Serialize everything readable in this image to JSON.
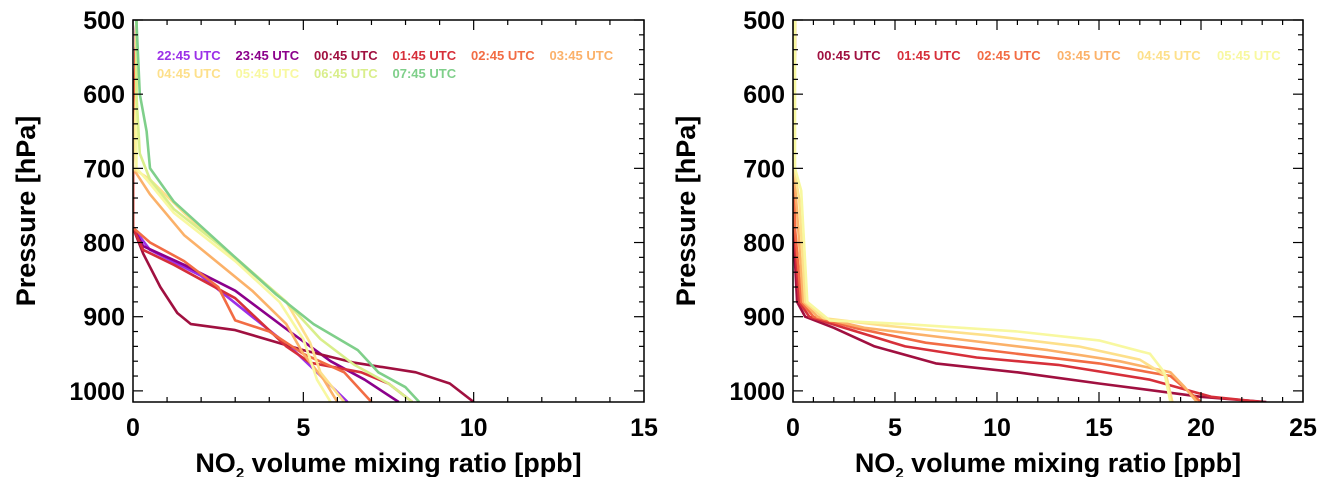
{
  "chart_data": [
    {
      "type": "line",
      "xlabel_main": "NO",
      "xlabel_sub": "2",
      "xlabel_rest": " volume mixing ratio [ppb]",
      "ylabel": "Pressure [hPa]",
      "xlim": [
        0,
        15
      ],
      "ylim": [
        1015,
        500
      ],
      "y_scale": "linear",
      "xticks": [
        0,
        5,
        10,
        15
      ],
      "yticks": [
        500,
        600,
        700,
        800,
        900,
        1000
      ],
      "xtick_labels": [
        "0",
        "5",
        "10",
        "15"
      ],
      "ytick_labels": [
        "500",
        "600",
        "700",
        "800",
        "900",
        "1000"
      ],
      "legend_rows": [
        6,
        4
      ],
      "series": [
        {
          "name": "22:45 UTC",
          "color": "#9b30e8",
          "points": [
            [
              0.1,
              500
            ],
            [
              0.05,
              600
            ],
            [
              0.0,
              700
            ],
            [
              0.0,
              780
            ],
            [
              0.5,
              810
            ],
            [
              2.0,
              845
            ],
            [
              3.5,
              900
            ],
            [
              4.6,
              940
            ],
            [
              5.4,
              975
            ],
            [
              6.3,
              1015
            ]
          ]
        },
        {
          "name": "23:45 UTC",
          "color": "#8b008b",
          "points": [
            [
              0.1,
              500
            ],
            [
              0.05,
              600
            ],
            [
              0.0,
              700
            ],
            [
              0.0,
              780
            ],
            [
              0.3,
              805
            ],
            [
              1.5,
              830
            ],
            [
              3.0,
              865
            ],
            [
              4.6,
              920
            ],
            [
              5.8,
              960
            ],
            [
              6.8,
              985
            ],
            [
              7.8,
              1015
            ]
          ]
        },
        {
          "name": "00:45 UTC",
          "color": "#a01040",
          "points": [
            [
              0.1,
              500
            ],
            [
              0.05,
              600
            ],
            [
              0.0,
              700
            ],
            [
              0.0,
              780
            ],
            [
              0.3,
              815
            ],
            [
              0.8,
              860
            ],
            [
              1.3,
              895
            ],
            [
              1.7,
              910
            ],
            [
              3.0,
              918
            ],
            [
              5.0,
              945
            ],
            [
              6.5,
              962
            ],
            [
              8.3,
              975
            ],
            [
              9.3,
              990
            ],
            [
              10.0,
              1015
            ]
          ]
        },
        {
          "name": "01:45 UTC",
          "color": "#d62f3a",
          "points": [
            [
              0.1,
              500
            ],
            [
              0.05,
              600
            ],
            [
              0.0,
              700
            ],
            [
              0.0,
              780
            ],
            [
              0.3,
              810
            ],
            [
              1.2,
              830
            ],
            [
              3.0,
              875
            ],
            [
              4.5,
              940
            ],
            [
              5.2,
              962
            ],
            [
              6.7,
              975
            ],
            [
              7.5,
              990
            ],
            [
              8.2,
              1015
            ]
          ]
        },
        {
          "name": "02:45 UTC",
          "color": "#f26c44",
          "points": [
            [
              0.1,
              500
            ],
            [
              0.05,
              600
            ],
            [
              0.0,
              700
            ],
            [
              0.0,
              780
            ],
            [
              0.5,
              800
            ],
            [
              1.5,
              825
            ],
            [
              2.5,
              860
            ],
            [
              3.0,
              905
            ],
            [
              4.0,
              920
            ],
            [
              5.0,
              950
            ],
            [
              6.2,
              975
            ],
            [
              7.0,
              1015
            ]
          ]
        },
        {
          "name": "03:45 UTC",
          "color": "#fbb169",
          "points": [
            [
              0.1,
              500
            ],
            [
              0.1,
              600
            ],
            [
              0.0,
              700
            ],
            [
              0.5,
              735
            ],
            [
              1.5,
              790
            ],
            [
              3.5,
              865
            ],
            [
              4.5,
              910
            ],
            [
              5.0,
              950
            ],
            [
              5.6,
              985
            ],
            [
              6.0,
              1015
            ]
          ]
        },
        {
          "name": "04:45 UTC",
          "color": "#fde08b",
          "points": [
            [
              0.1,
              500
            ],
            [
              0.1,
              600
            ],
            [
              0.0,
              700
            ],
            [
              0.5,
              715
            ],
            [
              1.5,
              760
            ],
            [
              3.2,
              830
            ],
            [
              4.5,
              880
            ],
            [
              5.2,
              935
            ],
            [
              5.5,
              975
            ],
            [
              6.2,
              1015
            ]
          ]
        },
        {
          "name": "05:45 UTC",
          "color": "#f8f8a0",
          "points": [
            [
              0.1,
              500
            ],
            [
              0.1,
              600
            ],
            [
              0.1,
              700
            ],
            [
              0.4,
              715
            ],
            [
              1.2,
              760
            ],
            [
              3.0,
              825
            ],
            [
              4.3,
              880
            ],
            [
              5.0,
              930
            ],
            [
              5.4,
              985
            ],
            [
              5.8,
              1015
            ]
          ]
        },
        {
          "name": "06:45 UTC",
          "color": "#d9ee8b",
          "points": [
            [
              0.1,
              500
            ],
            [
              0.1,
              600
            ],
            [
              0.2,
              680
            ],
            [
              0.5,
              715
            ],
            [
              1.2,
              755
            ],
            [
              3.0,
              820
            ],
            [
              4.5,
              880
            ],
            [
              5.5,
              930
            ],
            [
              6.5,
              965
            ],
            [
              7.5,
              990
            ],
            [
              8.2,
              1015
            ]
          ]
        },
        {
          "name": "07:45 UTC",
          "color": "#7fcf8a",
          "points": [
            [
              0.1,
              500
            ],
            [
              0.2,
              600
            ],
            [
              0.4,
              650
            ],
            [
              0.5,
              700
            ],
            [
              1.2,
              745
            ],
            [
              3.0,
              820
            ],
            [
              4.2,
              870
            ],
            [
              5.3,
              910
            ],
            [
              6.6,
              945
            ],
            [
              7.2,
              975
            ],
            [
              8.0,
              995
            ],
            [
              8.4,
              1015
            ]
          ]
        }
      ]
    },
    {
      "type": "line",
      "xlabel_main": "NO",
      "xlabel_sub": "2",
      "xlabel_rest": " volume mixing ratio [ppb]",
      "ylabel": "Pressure [hPa]",
      "xlim": [
        0,
        25
      ],
      "ylim": [
        1015,
        500
      ],
      "y_scale": "linear",
      "xticks": [
        0,
        5,
        10,
        15,
        20,
        25
      ],
      "yticks": [
        500,
        600,
        700,
        800,
        900,
        1000
      ],
      "xtick_labels": [
        "0",
        "5",
        "10",
        "15",
        "20",
        "25"
      ],
      "ytick_labels": [
        "500",
        "600",
        "700",
        "800",
        "900",
        "1000"
      ],
      "legend_rows": [
        6
      ],
      "series": [
        {
          "name": "00:45 UTC",
          "color": "#a01040",
          "points": [
            [
              0.1,
              500
            ],
            [
              0.05,
              700
            ],
            [
              0.05,
              800
            ],
            [
              0.2,
              880
            ],
            [
              0.6,
              900
            ],
            [
              2.0,
              915
            ],
            [
              4.0,
              940
            ],
            [
              7.0,
              963
            ],
            [
              11.0,
              975
            ],
            [
              15.0,
              990
            ],
            [
              20.0,
              1008
            ],
            [
              23.2,
              1015
            ]
          ]
        },
        {
          "name": "01:45 UTC",
          "color": "#d62f3a",
          "points": [
            [
              0.1,
              500
            ],
            [
              0.05,
              700
            ],
            [
              0.1,
              800
            ],
            [
              0.3,
              880
            ],
            [
              0.8,
              900
            ],
            [
              2.5,
              915
            ],
            [
              5.5,
              940
            ],
            [
              9.0,
              955
            ],
            [
              13.0,
              965
            ],
            [
              17.5,
              985
            ],
            [
              20.5,
              1008
            ],
            [
              23.0,
              1015
            ]
          ]
        },
        {
          "name": "02:45 UTC",
          "color": "#f26c44",
          "points": [
            [
              0.1,
              500
            ],
            [
              0.05,
              700
            ],
            [
              0.1,
              780
            ],
            [
              0.4,
              880
            ],
            [
              1.0,
              900
            ],
            [
              3.0,
              915
            ],
            [
              6.5,
              935
            ],
            [
              11.0,
              950
            ],
            [
              15.0,
              963
            ],
            [
              18.5,
              980
            ],
            [
              20.0,
              1015
            ]
          ]
        },
        {
          "name": "03:45 UTC",
          "color": "#fbb169",
          "points": [
            [
              0.1,
              500
            ],
            [
              0.05,
              700
            ],
            [
              0.2,
              760
            ],
            [
              0.5,
              880
            ],
            [
              1.2,
              900
            ],
            [
              3.5,
              915
            ],
            [
              8.0,
              930
            ],
            [
              12.5,
              945
            ],
            [
              16.0,
              960
            ],
            [
              18.5,
              975
            ],
            [
              19.2,
              995
            ],
            [
              19.8,
              1015
            ]
          ]
        },
        {
          "name": "04:45 UTC",
          "color": "#fde08b",
          "points": [
            [
              0.1,
              500
            ],
            [
              0.05,
              700
            ],
            [
              0.3,
              740
            ],
            [
              0.6,
              880
            ],
            [
              1.5,
              902
            ],
            [
              4.5,
              912
            ],
            [
              9.5,
              925
            ],
            [
              14.0,
              940
            ],
            [
              17.0,
              958
            ],
            [
              18.3,
              980
            ],
            [
              18.6,
              1015
            ]
          ]
        },
        {
          "name": "05:45 UTC",
          "color": "#f8f8a0",
          "points": [
            [
              0.1,
              500
            ],
            [
              0.1,
              700
            ],
            [
              0.4,
              730
            ],
            [
              0.7,
              880
            ],
            [
              1.8,
              905
            ],
            [
              5.5,
              910
            ],
            [
              11.0,
              920
            ],
            [
              15.0,
              932
            ],
            [
              17.5,
              950
            ],
            [
              18.2,
              975
            ],
            [
              18.5,
              1015
            ]
          ]
        }
      ]
    }
  ]
}
